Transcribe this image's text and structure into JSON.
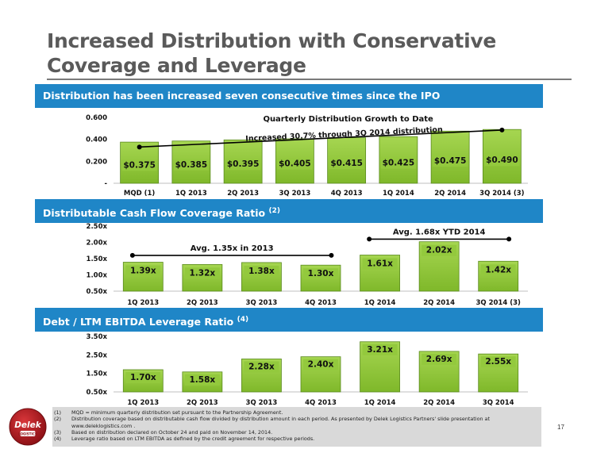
{
  "slide": {
    "title": "Increased Distribution with Conservative Coverage and Leverage",
    "page_number": "17"
  },
  "bands": {
    "distribution": "Distribution has been increased seven consecutive times since the IPO",
    "coverage": "Distributable Cash Flow Coverage Ratio",
    "coverage_note": "(2)",
    "leverage": "Debt / LTM EBITDA Leverage Ratio",
    "leverage_note": "(4)"
  },
  "colors": {
    "band_blue": "#1f86c7",
    "bar_green": "#93c93d",
    "title_gray": "#5a5a5a",
    "footnote_bg": "#d9d9d9"
  },
  "chart_data": [
    {
      "type": "bar",
      "categories": [
        "MQD (1)",
        "1Q 2013",
        "2Q 2013",
        "3Q 2013",
        "4Q 2013",
        "1Q 2014",
        "2Q 2014",
        "3Q 2014 (3)"
      ],
      "values": [
        0.375,
        0.385,
        0.395,
        0.405,
        0.415,
        0.425,
        0.475,
        0.49
      ],
      "data_labels": [
        "$0.375",
        "$0.385",
        "$0.395",
        "$0.405",
        "$0.415",
        "$0.425",
        "$0.475",
        "$0.490"
      ],
      "title": "Quarterly Distribution Growth to Date",
      "annotation": "Increased 30.7% through 3Q 2014 distribution",
      "trend_line": {
        "from_value": 0.33,
        "to_value": 0.485
      },
      "ylim": [
        0,
        0.6
      ],
      "yticks": [
        0,
        0.2,
        0.4,
        0.6
      ],
      "ytick_labels": [
        "-",
        "0.200",
        "0.400",
        "0.600"
      ],
      "grid": false
    },
    {
      "type": "bar",
      "categories": [
        "1Q 2013",
        "2Q 2013",
        "3Q 2013",
        "4Q 2013",
        "1Q 2014",
        "2Q 2014",
        "3Q 2014 (3)"
      ],
      "values": [
        1.39,
        1.32,
        1.38,
        1.3,
        1.61,
        2.02,
        1.42
      ],
      "data_labels": [
        "1.39x",
        "1.32x",
        "1.38x",
        "1.30x",
        "1.61x",
        "2.02x",
        "1.42x"
      ],
      "ylim": [
        0.5,
        2.5
      ],
      "yticks": [
        0.5,
        1.0,
        1.5,
        2.0,
        2.5
      ],
      "ytick_labels": [
        "0.50x",
        "1.00x",
        "1.50x",
        "2.00x",
        "2.50x"
      ],
      "averages": [
        {
          "label": "Avg. 1.35x in 2013",
          "value": 1.6,
          "from_index": 0,
          "to_index": 3
        },
        {
          "label": "Avg. 1.68x YTD 2014",
          "value": 2.1,
          "from_index": 4,
          "to_index": 6
        }
      ],
      "grid": false
    },
    {
      "type": "bar",
      "categories": [
        "1Q 2013",
        "2Q 2013",
        "3Q 2013",
        "4Q 2013",
        "1Q 2014",
        "2Q 2014",
        "3Q 2014"
      ],
      "values": [
        1.7,
        1.58,
        2.28,
        2.4,
        3.21,
        2.69,
        2.55
      ],
      "data_labels": [
        "1.70x",
        "1.58x",
        "2.28x",
        "2.40x",
        "3.21x",
        "2.69x",
        "2.55x"
      ],
      "ylim": [
        0.5,
        3.5
      ],
      "yticks": [
        0.5,
        1.5,
        2.5,
        3.5
      ],
      "ytick_labels": [
        "0.50x",
        "1.50x",
        "2.50x",
        "3.50x"
      ],
      "grid": false
    }
  ],
  "footnotes": [
    {
      "num": "(1)",
      "text": "MQD = minimum quarterly distribution set pursuant to the Partnership Agreement."
    },
    {
      "num": "(2)",
      "text": "Distribution coverage based on distributable cash flow divided by distribution amount in each period. As presented by Delek Logistics Partners' slide presentation at www.deleklogistics.com ."
    },
    {
      "num": "(3)",
      "text": "Based on distribution declared on October 24 and paid on November 14, 2014."
    },
    {
      "num": "(4)",
      "text": "Leverage ratio based on LTM EBITDA as defined by the credit agreement for respective periods."
    }
  ],
  "logo": {
    "name": "Delek",
    "sub": "LOGISTICS"
  }
}
